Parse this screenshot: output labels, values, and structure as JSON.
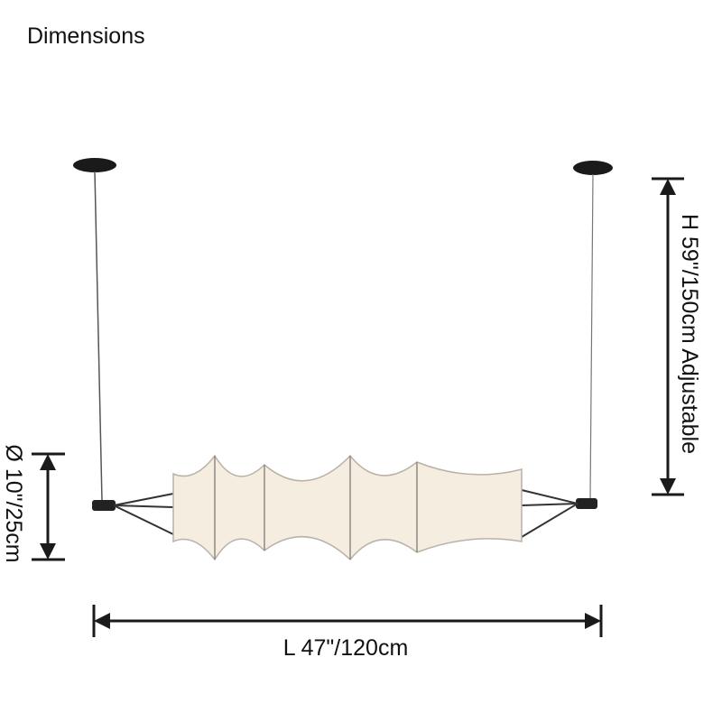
{
  "title": "Dimensions",
  "dimensions": {
    "height": "H 59\"/150cm Adjustable",
    "diameter": "Ø 10\"/25cm",
    "length": "L 47\"/120cm"
  }
}
